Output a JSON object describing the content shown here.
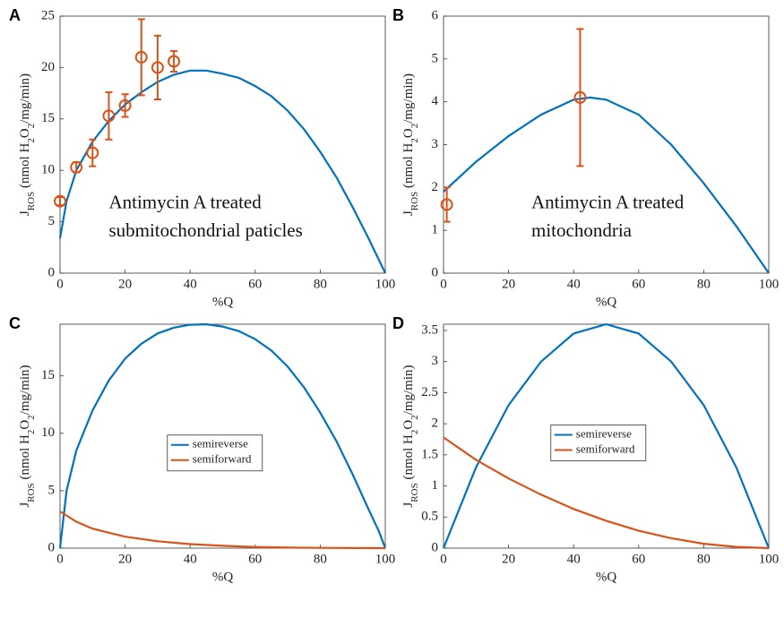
{
  "chart_data": [
    {
      "type": "line",
      "label": "A",
      "xlabel": "%Q",
      "ylabel": [
        "J",
        "ROS",
        " (nmol H",
        "2",
        "O",
        "2",
        "/mg/min)"
      ],
      "annotations": [
        "Antimycin A treated",
        "submitochondrial paticles"
      ],
      "xlim": [
        0,
        100
      ],
      "xticks": [
        0,
        20,
        40,
        60,
        80,
        100
      ],
      "ylim": [
        0,
        25
      ],
      "yticks": [
        0,
        5,
        10,
        15,
        20,
        25
      ],
      "series": [
        {
          "kind": "line",
          "color": "#0072bd",
          "x": [
            0,
            2,
            5,
            10,
            15,
            20,
            25,
            30,
            35,
            40,
            45,
            50,
            55,
            60,
            65,
            70,
            75,
            80,
            85,
            90,
            95,
            100
          ],
          "values": [
            3.4,
            7,
            10,
            12.8,
            14.8,
            16.4,
            17.6,
            18.6,
            19.3,
            19.7,
            19.7,
            19.4,
            19.0,
            18.2,
            17.2,
            15.8,
            14.0,
            11.8,
            9.3,
            6.4,
            3.3,
            0
          ]
        },
        {
          "kind": "errorbar",
          "color": "#d95319",
          "x": [
            0,
            5,
            10,
            15,
            20,
            25,
            30,
            35
          ],
          "values": [
            7.0,
            10.3,
            11.7,
            15.3,
            16.3,
            21.0,
            20.0,
            20.6
          ],
          "errors": [
            0.4,
            0.5,
            1.3,
            2.3,
            1.1,
            3.7,
            3.1,
            1.0
          ]
        }
      ]
    },
    {
      "type": "line",
      "label": "B",
      "xlabel": "%Q",
      "ylabel": [
        "J",
        "ROS",
        " (nmol H",
        "2",
        "O",
        "2",
        "/mg/min)"
      ],
      "annotations": [
        "Antimycin A treated",
        "mitochondria"
      ],
      "xlim": [
        0,
        100
      ],
      "xticks": [
        0,
        20,
        40,
        60,
        80,
        100
      ],
      "ylim": [
        0,
        6
      ],
      "yticks": [
        0,
        1,
        2,
        3,
        4,
        5,
        6
      ],
      "series": [
        {
          "kind": "line",
          "color": "#0072bd",
          "x": [
            0,
            10,
            20,
            30,
            40,
            45,
            50,
            60,
            70,
            80,
            90,
            100
          ],
          "values": [
            1.9,
            2.6,
            3.2,
            3.7,
            4.05,
            4.1,
            4.05,
            3.7,
            3.0,
            2.1,
            1.1,
            0
          ]
        },
        {
          "kind": "errorbar",
          "color": "#d95319",
          "x": [
            1,
            42
          ],
          "values": [
            1.6,
            4.1
          ],
          "errors": [
            0.4,
            1.6
          ]
        }
      ]
    },
    {
      "type": "line",
      "label": "C",
      "xlabel": "%Q",
      "ylabel": [
        "J",
        "ROS",
        " (nmol H",
        "2",
        "O",
        "2",
        "/mg/min)"
      ],
      "xlim": [
        0,
        100
      ],
      "xticks": [
        0,
        20,
        40,
        60,
        80,
        100
      ],
      "ylim": [
        0,
        19.5
      ],
      "yticks": [
        0,
        5,
        10,
        15
      ],
      "legend": "center",
      "series": [
        {
          "kind": "line",
          "name": "semireverse",
          "color": "#0072bd",
          "x": [
            0,
            2,
            5,
            10,
            15,
            20,
            25,
            30,
            35,
            40,
            45,
            50,
            55,
            60,
            65,
            70,
            75,
            80,
            85,
            90,
            95,
            98,
            100
          ],
          "values": [
            0,
            5,
            8.5,
            12,
            14.6,
            16.5,
            17.8,
            18.7,
            19.2,
            19.45,
            19.5,
            19.3,
            18.9,
            18.2,
            17.2,
            15.8,
            14.0,
            11.8,
            9.3,
            6.4,
            3.3,
            1.5,
            0
          ]
        },
        {
          "kind": "line",
          "name": "semiforward",
          "color": "#d95319",
          "x": [
            0,
            5,
            10,
            20,
            30,
            40,
            50,
            60,
            70,
            80,
            90,
            100
          ],
          "values": [
            3.2,
            2.3,
            1.7,
            1.0,
            0.6,
            0.35,
            0.2,
            0.1,
            0.05,
            0.02,
            0.01,
            0
          ]
        }
      ]
    },
    {
      "type": "line",
      "label": "D",
      "xlabel": "%Q",
      "ylabel": [
        "J",
        "ROS",
        " (nmol H",
        "2",
        "O",
        "2",
        "/mg/min)"
      ],
      "xlim": [
        0,
        100
      ],
      "xticks": [
        0,
        20,
        40,
        60,
        80,
        100
      ],
      "ylim": [
        0,
        3.6
      ],
      "yticks": [
        0,
        0.5,
        1,
        1.5,
        2,
        2.5,
        3,
        3.5
      ],
      "legend": "center",
      "series": [
        {
          "kind": "line",
          "name": "semireverse",
          "color": "#0072bd",
          "x": [
            0,
            10,
            20,
            30,
            40,
            50,
            60,
            70,
            80,
            90,
            100
          ],
          "values": [
            0,
            1.3,
            2.3,
            3.0,
            3.45,
            3.6,
            3.45,
            3.0,
            2.3,
            1.3,
            0
          ]
        },
        {
          "kind": "line",
          "name": "semiforward",
          "color": "#d95319",
          "x": [
            0,
            10,
            20,
            30,
            40,
            50,
            60,
            70,
            80,
            90,
            100
          ],
          "values": [
            1.78,
            1.42,
            1.12,
            0.86,
            0.63,
            0.44,
            0.28,
            0.16,
            0.07,
            0.02,
            0
          ]
        }
      ]
    }
  ]
}
